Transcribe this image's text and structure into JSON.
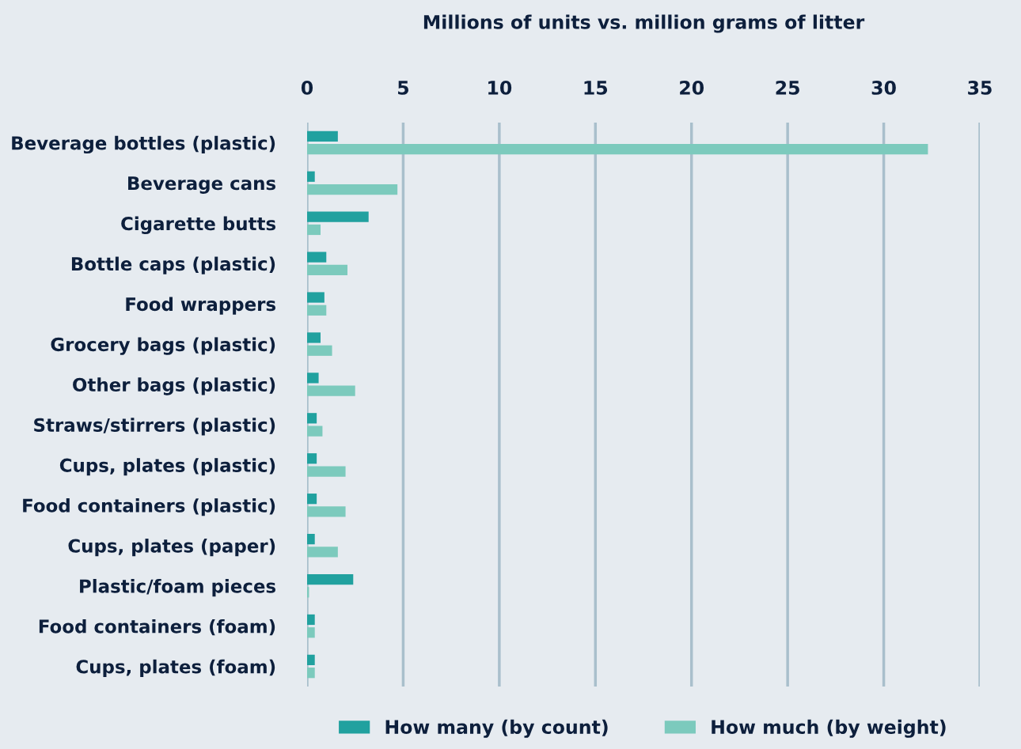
{
  "chart_data": {
    "type": "bar",
    "orientation": "horizontal",
    "title": "Millions of units vs. million grams of litter",
    "categories": [
      "Beverage bottles (plastic)",
      "Beverage cans",
      "Cigarette butts",
      "Bottle caps (plastic)",
      "Food wrappers",
      "Grocery bags (plastic)",
      "Other bags (plastic)",
      "Straws/stirrers (plastic)",
      "Cups, plates (plastic)",
      "Food containers (plastic)",
      "Cups, plates (paper)",
      "Plastic/foam pieces",
      "Food containers (foam)",
      "Cups, plates (foam)"
    ],
    "series": [
      {
        "name": "How many (by count)",
        "color": "#21a19f",
        "values": [
          1.6,
          0.4,
          3.2,
          1.0,
          0.9,
          0.7,
          0.6,
          0.5,
          0.5,
          0.5,
          0.4,
          2.4,
          0.4,
          0.4
        ]
      },
      {
        "name": "How much (by weight)",
        "color": "#7ccabd",
        "values": [
          32.3,
          4.7,
          0.7,
          2.1,
          1.0,
          1.3,
          2.5,
          0.8,
          2.0,
          2.0,
          1.6,
          0.1,
          0.4,
          0.4
        ]
      }
    ],
    "xlim": [
      0,
      35
    ],
    "xticks": [
      0,
      5,
      10,
      15,
      20,
      25,
      30,
      35
    ],
    "grid": "x",
    "legend": "bottom"
  }
}
